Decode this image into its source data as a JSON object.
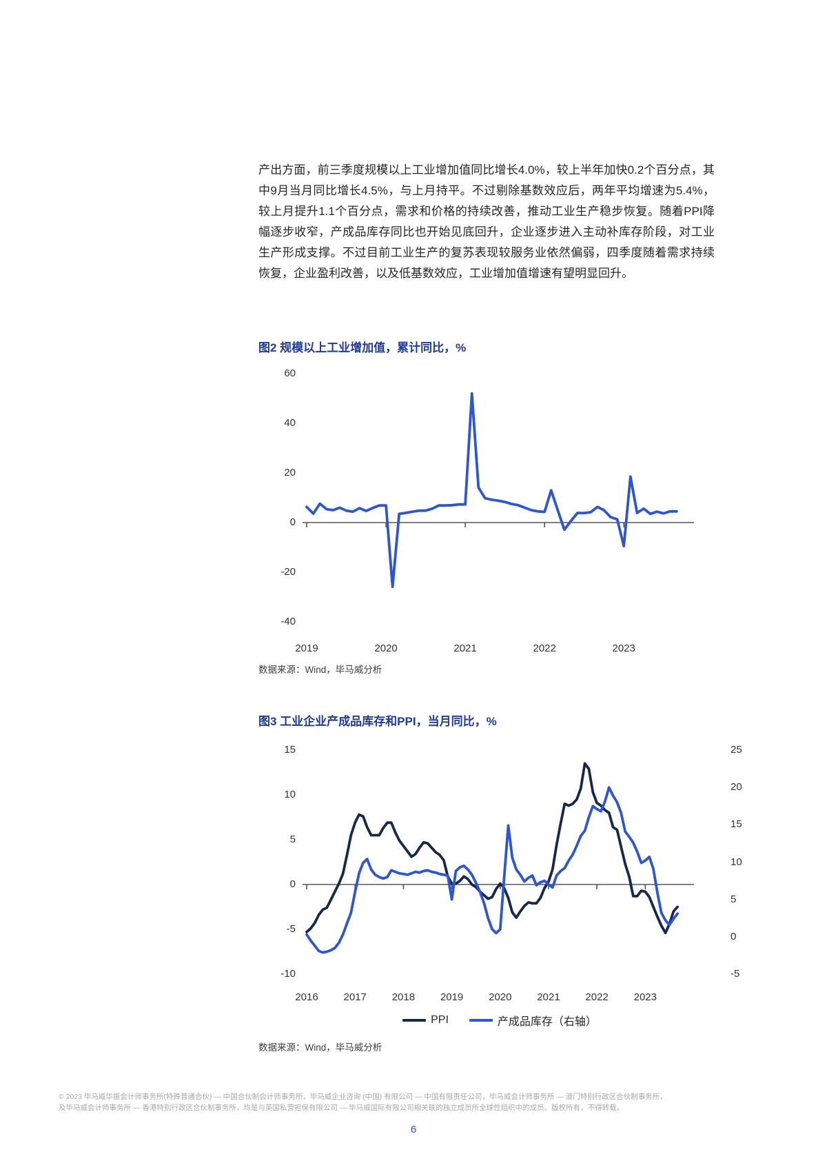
{
  "page": {
    "paragraph": "产出方面，前三季度规模以上工业增加值同比增长4.0%，较上半年加快0.2个百分点，其中9月当月同比增长4.5%，与上月持平。不过剔除基数效应后，两年平均增速为5.4%，较上月提升1.1个百分点，需求和价格的持续改善，推动工业生产稳步恢复。随着PPI降幅逐步收窄，产成品库存同比也开始见底回升，企业逐步进入主动补库存阶段，对工业生产形成支撑。不过目前工业生产的复苏表现较服务业依然偏弱，四季度随着需求持续恢复，企业盈利改善，以及低基数效应，工业增加值增速有望明显回升。",
    "footer_line1": "© 2023 毕马威华振会计师事务所(特殊普通合伙) — 中国合伙制会计师事务所，毕马威企业咨询 (中国) 有限公司 — 中国有限责任公司，毕马威会计师事务所 — 澳门特别行政区合伙制事务所，",
    "footer_line2": "及毕马威会计师事务所 — 香港特别行政区合伙制事务所，均是与英国私营担保有限公司 — 毕马威国际有限公司相关联的独立成员所全球性组织中的成员。版权所有，不得转载。",
    "page_number": "6"
  },
  "colors": {
    "title_blue": "#1f3a99",
    "line_blue": "#2e56d4",
    "line_navy": "#17294a",
    "axis_gray": "#55565a",
    "page_number_blue": "#2b50c4"
  },
  "chart_data": [
    {
      "id": "figure2",
      "type": "line",
      "title": "图2 规模以上工业增加值，累计同比，%",
      "source": "数据来源：Wind，毕马威分析",
      "x_min": 2019.0,
      "x_max": 2023.85,
      "x_ticks": [
        "2019",
        "2020",
        "2021",
        "2022",
        "2023"
      ],
      "ylim": [
        -40,
        60
      ],
      "y_ticks": [
        60,
        40,
        20,
        0,
        -20,
        -40
      ],
      "grid": false,
      "legend_position": "none",
      "series": [
        {
          "name": "规模以上工业增加值",
          "axis": "left",
          "color": "#2e56d4",
          "values": [
            6.3,
            3.6,
            7.6,
            5.4,
            5.0,
            6.0,
            4.8,
            4.4,
            5.8,
            4.7,
            5.9,
            6.9,
            6.9,
            -25.9,
            3.5,
            3.9,
            4.4,
            4.8,
            4.8,
            5.6,
            6.9,
            6.9,
            7.0,
            7.3,
            7.3,
            52.0,
            14.1,
            9.8,
            9.2,
            8.8,
            8.3,
            7.5,
            7.0,
            6.0,
            5.0,
            4.5,
            4.3,
            13.0,
            5.0,
            -2.9,
            0.7,
            3.9,
            3.8,
            4.2,
            6.3,
            5.0,
            2.2,
            1.3,
            -9.5,
            18.5,
            3.9,
            5.6,
            3.5,
            4.4,
            3.7,
            4.5,
            4.5
          ]
        }
      ]
    },
    {
      "id": "figure3",
      "type": "line",
      "title": "图3 工业企业产成品库存和PPI，当月同比，%",
      "source": "数据来源：Wind，毕马威分析",
      "x_min": 2016.0,
      "x_max": 2023.95,
      "x_ticks": [
        "2016",
        "2017",
        "2018",
        "2019",
        "2020",
        "2021",
        "2022",
        "2023"
      ],
      "ylim": [
        -10,
        15
      ],
      "ylim_right": [
        -5,
        25
      ],
      "y_ticks": [
        15,
        10,
        5,
        0,
        -5,
        -10
      ],
      "y_ticks_right": [
        25,
        20,
        15,
        10,
        5,
        0,
        -5
      ],
      "grid": false,
      "legend_position": "bottom",
      "series": [
        {
          "name": "PPI",
          "axis": "left",
          "color": "#17294a",
          "values": [
            -5.3,
            -4.9,
            -4.3,
            -3.4,
            -2.8,
            -2.6,
            -1.7,
            -0.8,
            0.1,
            1.2,
            3.3,
            5.5,
            6.9,
            7.8,
            7.6,
            6.4,
            5.5,
            5.5,
            5.5,
            6.3,
            6.9,
            6.9,
            5.8,
            4.9,
            4.3,
            3.7,
            3.1,
            3.4,
            4.1,
            4.7,
            4.6,
            4.1,
            3.6,
            3.3,
            2.7,
            0.9,
            0.1,
            0.1,
            0.4,
            0.9,
            0.6,
            0.0,
            -0.3,
            -0.8,
            -1.2,
            -1.6,
            -1.4,
            -0.5,
            0.1,
            -0.4,
            -1.5,
            -3.1,
            -3.7,
            -3.0,
            -2.4,
            -2.0,
            -2.1,
            -2.1,
            -1.5,
            -0.4,
            0.3,
            1.7,
            4.4,
            6.8,
            9.0,
            8.8,
            9.0,
            9.5,
            10.7,
            13.5,
            12.9,
            10.3,
            9.1,
            8.8,
            8.3,
            8.0,
            6.4,
            6.1,
            4.2,
            2.3,
            0.9,
            -1.3,
            -1.3,
            -0.7,
            -0.8,
            -1.4,
            -2.5,
            -3.6,
            -4.6,
            -5.4,
            -4.4,
            -3.0,
            -2.5
          ]
        },
        {
          "name": "产成品库存（右轴）",
          "axis": "right",
          "color": "#2e56d4",
          "values": [
            0.3,
            -0.5,
            -1.2,
            -1.9,
            -2.1,
            -2.0,
            -1.8,
            -1.5,
            -0.8,
            0.3,
            1.8,
            3.2,
            6.0,
            8.5,
            9.9,
            10.4,
            9.0,
            8.3,
            8.0,
            7.8,
            8.0,
            8.9,
            8.7,
            8.5,
            8.4,
            8.3,
            8.5,
            8.7,
            8.6,
            8.8,
            8.9,
            8.7,
            8.6,
            8.4,
            8.3,
            8.2,
            5.0,
            8.8,
            9.3,
            9.5,
            9.0,
            8.3,
            7.2,
            6.0,
            4.5,
            2.5,
            1.0,
            0.5,
            1.0,
            8.0,
            14.9,
            10.6,
            9.0,
            8.3,
            7.4,
            7.9,
            8.2,
            6.9,
            7.3,
            7.5,
            7.0,
            6.6,
            8.2,
            8.8,
            9.2,
            10.2,
            11.0,
            12.2,
            13.5,
            14.2,
            16.0,
            17.5,
            17.1,
            16.8,
            18.1,
            20.0,
            18.9,
            18.0,
            16.6,
            14.1,
            13.4,
            12.6,
            11.4,
            9.9,
            10.2,
            10.7,
            9.1,
            5.9,
            3.2,
            2.2,
            1.6,
            2.4,
            3.1
          ]
        }
      ]
    }
  ]
}
